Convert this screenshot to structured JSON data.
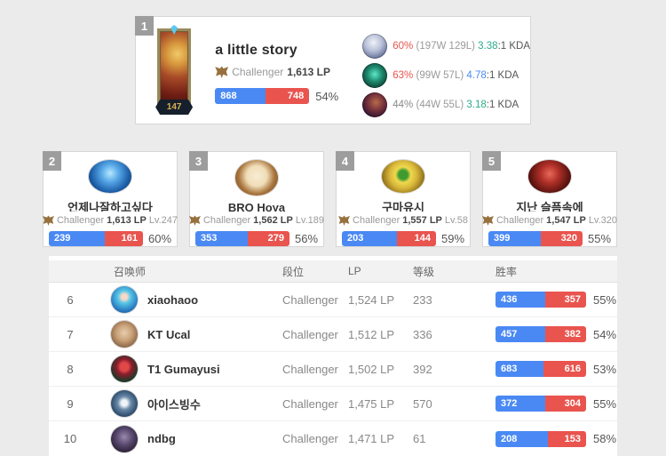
{
  "colors": {
    "win_blue": "#4a89f4",
    "loss_red": "#e9544e",
    "kda_teal": "#2bab8a",
    "kda_blue": "#4a89f4",
    "pct_red": "#e9544e",
    "pct_gray": "#8a8a8a"
  },
  "top_card": {
    "rank": "1",
    "level": "147",
    "name": "a little story",
    "tier": "Challenger",
    "lp": "1,613 LP",
    "wins": 868,
    "losses": 748,
    "winrate": "54%",
    "champions": [
      {
        "winrate": "60%",
        "winrate_color": "#e9544e",
        "record": "(197W 129L)",
        "kda": "3.38",
        "kda_color": "#2bab8a",
        "kda_suffix": ":1 KDA"
      },
      {
        "winrate": "63%",
        "winrate_color": "#e9544e",
        "record": "(99W 57L)",
        "kda": "4.78",
        "kda_color": "#4a89f4",
        "kda_suffix": ":1 KDA"
      },
      {
        "winrate": "44%",
        "winrate_color": "#8a8a8a",
        "record": "(44W 55L)",
        "kda": "3.18",
        "kda_color": "#2bab8a",
        "kda_suffix": ":1 KDA"
      }
    ]
  },
  "cards": [
    {
      "rank": "2",
      "name": "언제나잘하고싶다",
      "tier": "Challenger",
      "lp": "1,613 LP",
      "level": "Lv.247",
      "wins": 239,
      "losses": 161,
      "winrate": "60%"
    },
    {
      "rank": "3",
      "name": "BRO Hoya",
      "tier": "Challenger",
      "lp": "1,562 LP",
      "level": "Lv.189",
      "wins": 353,
      "losses": 279,
      "winrate": "56%"
    },
    {
      "rank": "4",
      "name": "구마유시",
      "tier": "Challenger",
      "lp": "1,557 LP",
      "level": "Lv.58",
      "wins": 203,
      "losses": 144,
      "winrate": "59%"
    },
    {
      "rank": "5",
      "name": "지난 슬픔속에",
      "tier": "Challenger",
      "lp": "1,547 LP",
      "level": "Lv.320",
      "wins": 399,
      "losses": 320,
      "winrate": "55%"
    }
  ],
  "table": {
    "headers": {
      "summoner": "召唤师",
      "tier": "段位",
      "lp": "LP",
      "level": "等级",
      "winrate": "胜率"
    },
    "rows": [
      {
        "rank": "6",
        "name": "xiaohaoo",
        "tier": "Challenger",
        "lp": "1,524 LP",
        "level": "233",
        "wins": 436,
        "losses": 357,
        "winrate": "55%"
      },
      {
        "rank": "7",
        "name": "KT Ucal",
        "tier": "Challenger",
        "lp": "1,512 LP",
        "level": "336",
        "wins": 457,
        "losses": 382,
        "winrate": "54%"
      },
      {
        "rank": "8",
        "name": "T1 Gumayusi",
        "tier": "Challenger",
        "lp": "1,502 LP",
        "level": "392",
        "wins": 683,
        "losses": 616,
        "winrate": "53%"
      },
      {
        "rank": "9",
        "name": "아이스빙수",
        "tier": "Challenger",
        "lp": "1,475 LP",
        "level": "570",
        "wins": 372,
        "losses": 304,
        "winrate": "55%"
      },
      {
        "rank": "10",
        "name": "ndbg",
        "tier": "Challenger",
        "lp": "1,471 LP",
        "level": "61",
        "wins": 208,
        "losses": 153,
        "winrate": "58%"
      }
    ]
  }
}
